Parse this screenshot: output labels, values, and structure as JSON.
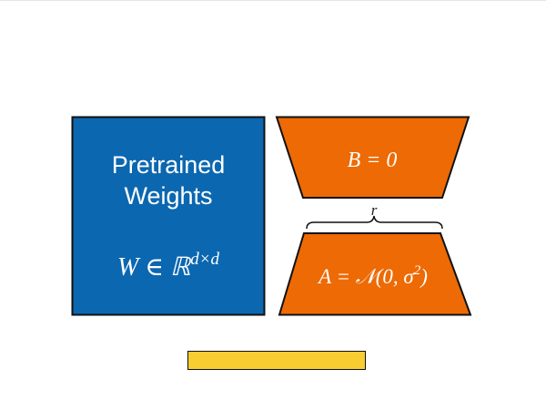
{
  "colors": {
    "weights": "#0b67b0",
    "lora": "#ed6a05",
    "bar": "#f8cd32",
    "outline": "#111111"
  },
  "weights_box": {
    "line1": "Pretrained",
    "line2": "Weights",
    "formula_main": "W ∈ ℝ",
    "formula_sup": "d×d"
  },
  "matrix_b": {
    "formula": "B = 0"
  },
  "matrix_a": {
    "formula_main": "A = 𝒩(0, σ",
    "formula_sup": "2",
    "formula_end": ")"
  },
  "rank": {
    "label": "r"
  }
}
